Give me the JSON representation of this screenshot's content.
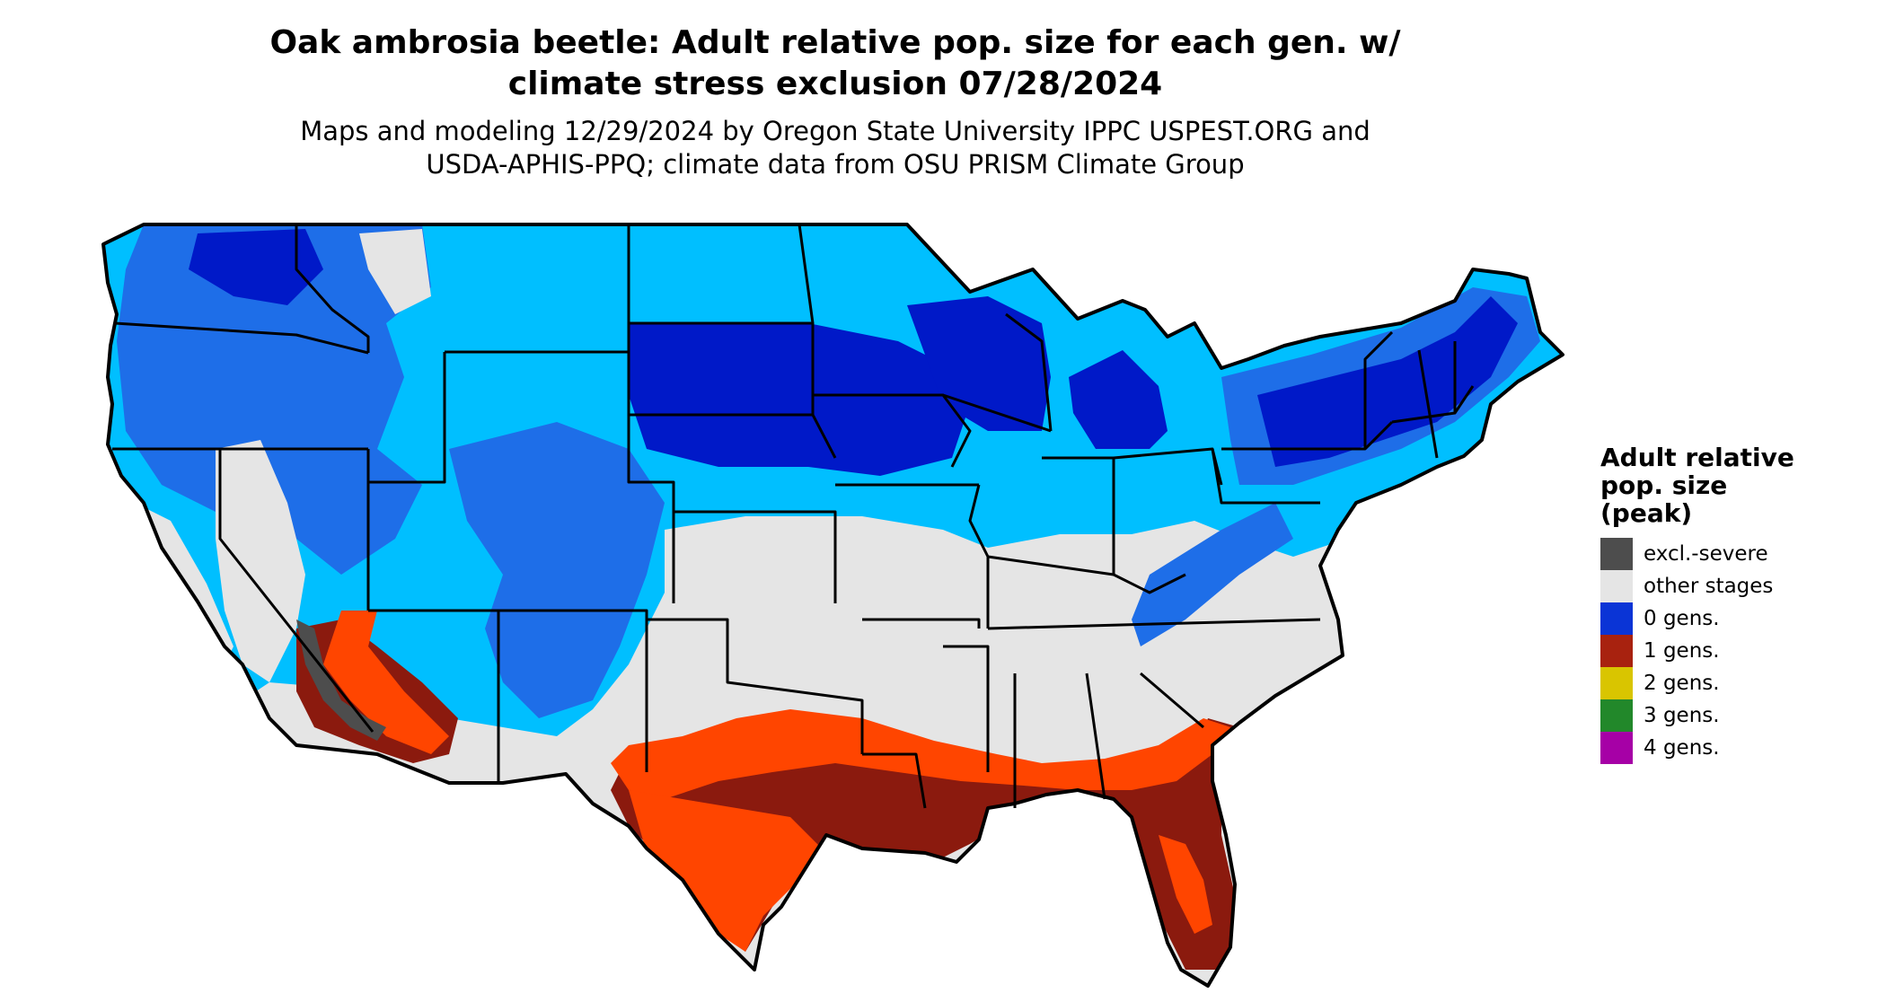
{
  "title": {
    "line1": "Oak ambrosia beetle: Adult relative pop. size for each gen. w/",
    "line2": "climate stress exclusion 07/28/2024"
  },
  "subtitle": {
    "line1": "Maps and modeling 12/29/2024 by Oregon State University IPPC USPEST.ORG and",
    "line2": "USDA-APHIS-PPQ; climate data from OSU PRISM Climate Group"
  },
  "legend": {
    "title_line1": "Adult relative",
    "title_line2": "pop. size",
    "title_line3": "(peak)",
    "items": [
      {
        "label": "excl.-severe",
        "color": "#4d4d4d"
      },
      {
        "label": "other stages",
        "color": "#e5e5e5"
      },
      {
        "label": "0 gens.",
        "color": "#0a34d6"
      },
      {
        "label": "1 gens.",
        "color": "#a8220f"
      },
      {
        "label": "2 gens.",
        "color": "#d9c500"
      },
      {
        "label": "3 gens.",
        "color": "#22882a"
      },
      {
        "label": "4 gens.",
        "color": "#a600a6"
      }
    ]
  },
  "colors": {
    "north_light_blue": "#00bfff",
    "north_mid_blue": "#1e6ee8",
    "north_dark_blue": "#0019c8",
    "south_orange": "#ff4500",
    "south_dark_red": "#8b1a0e",
    "other_grey": "#e5e5e5",
    "excluded_grey": "#4d4d4d",
    "border": "#000000"
  }
}
